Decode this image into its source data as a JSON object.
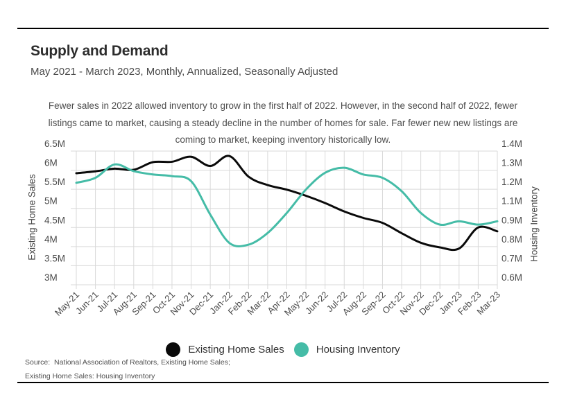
{
  "header": {
    "title": "Supply and Demand",
    "subtitle": "May 2021 - March 2023, Monthly, Annualized, Seasonally Adjusted"
  },
  "annotation": {
    "lines": [
      "Fewer sales in 2022 allowed inventory to grow in the first half of 2022. However, in the second half of 2022, fewer",
      "listings came to market, causing a steady decline in the number of homes for sale. Far fewer new new listings are",
      "coming to market, keeping inventory historically low."
    ]
  },
  "axes": {
    "left_title": "Existing Home Sales",
    "right_title": "Housing Inventory",
    "left_ticks": [
      "6.5M",
      "6M",
      "5.5M",
      "5M",
      "4.5M",
      "4M",
      "3.5M",
      "3M"
    ],
    "right_ticks": [
      "1.4M",
      "1.3M",
      "1.2M",
      "1.1M",
      "0.9M",
      "0.8M",
      "0.7M",
      "0.6M"
    ],
    "x_ticks": [
      "May-21",
      "Jun-21",
      "Jul-21",
      "Aug-21",
      "Sep-21",
      "Oct-21",
      "Nov-21",
      "Dec-21",
      "Jan-22",
      "Feb-22",
      "Mar-22",
      "Apr-22",
      "May-22",
      "Jun-22",
      "Jul-22",
      "Aug-22",
      "Sep-22",
      "Oct-22",
      "Nov-22",
      "Dec-22",
      "Jan-23",
      "Feb-23",
      "Mar-23"
    ]
  },
  "legend": [
    {
      "label": "Existing Home Sales",
      "color": "#0a0a0a"
    },
    {
      "label": "Housing Inventory",
      "color": "#45bca7"
    }
  ],
  "source": {
    "line1": "Source:  National Association of Realtors, Existing Home Sales;",
    "line2": "Existing Home Sales: Housing Inventory"
  },
  "colors": {
    "grid": "#d9d9d9",
    "axis_text": "#4b4b4b",
    "accent_teal": "#45bca7",
    "series_black": "#0a0a0a",
    "rule": "#000000"
  },
  "chart_data": {
    "type": "line",
    "title": "Supply and Demand",
    "subtitle": "May 2021 - March 2023, Monthly, Annualized, Seasonally Adjusted",
    "categories": [
      "May-21",
      "Jun-21",
      "Jul-21",
      "Aug-21",
      "Sep-21",
      "Oct-21",
      "Nov-21",
      "Dec-21",
      "Jan-22",
      "Feb-22",
      "Mar-22",
      "Apr-22",
      "May-22",
      "Jun-22",
      "Jul-22",
      "Aug-22",
      "Sep-22",
      "Oct-22",
      "Nov-22",
      "Dec-22",
      "Jan-23",
      "Feb-23",
      "Mar-23"
    ],
    "series": [
      {
        "name": "Existing Home Sales",
        "axis": "left",
        "color": "#0a0a0a",
        "units": "millions, annualized",
        "values": [
          5.92,
          5.97,
          6.04,
          6.01,
          6.21,
          6.22,
          6.35,
          6.11,
          6.37,
          5.83,
          5.61,
          5.49,
          5.33,
          5.14,
          4.92,
          4.75,
          4.62,
          4.35,
          4.1,
          3.98,
          3.95,
          4.5,
          4.4
        ]
      },
      {
        "name": "Housing Inventory",
        "axis": "right",
        "color": "#45bca7",
        "units": "millions",
        "values": [
          1.21,
          1.24,
          1.32,
          1.28,
          1.26,
          1.25,
          1.22,
          1.02,
          0.85,
          0.84,
          0.91,
          1.03,
          1.17,
          1.27,
          1.3,
          1.26,
          1.24,
          1.16,
          1.03,
          0.96,
          0.98,
          0.96,
          0.98
        ]
      }
    ],
    "left_axis": {
      "label": "Existing Home Sales",
      "range": [
        3.0,
        6.5
      ],
      "tick_step": 0.5
    },
    "right_axis": {
      "label": "Housing Inventory",
      "range": [
        0.6,
        1.4
      ],
      "tick_labels_as_shown": [
        "1.4M",
        "1.3M",
        "1.2M",
        "1.1M",
        "0.9M",
        "0.8M",
        "0.7M",
        "0.6M"
      ]
    },
    "grid": true,
    "curve": "smoothed",
    "legend_position": "bottom-center"
  }
}
